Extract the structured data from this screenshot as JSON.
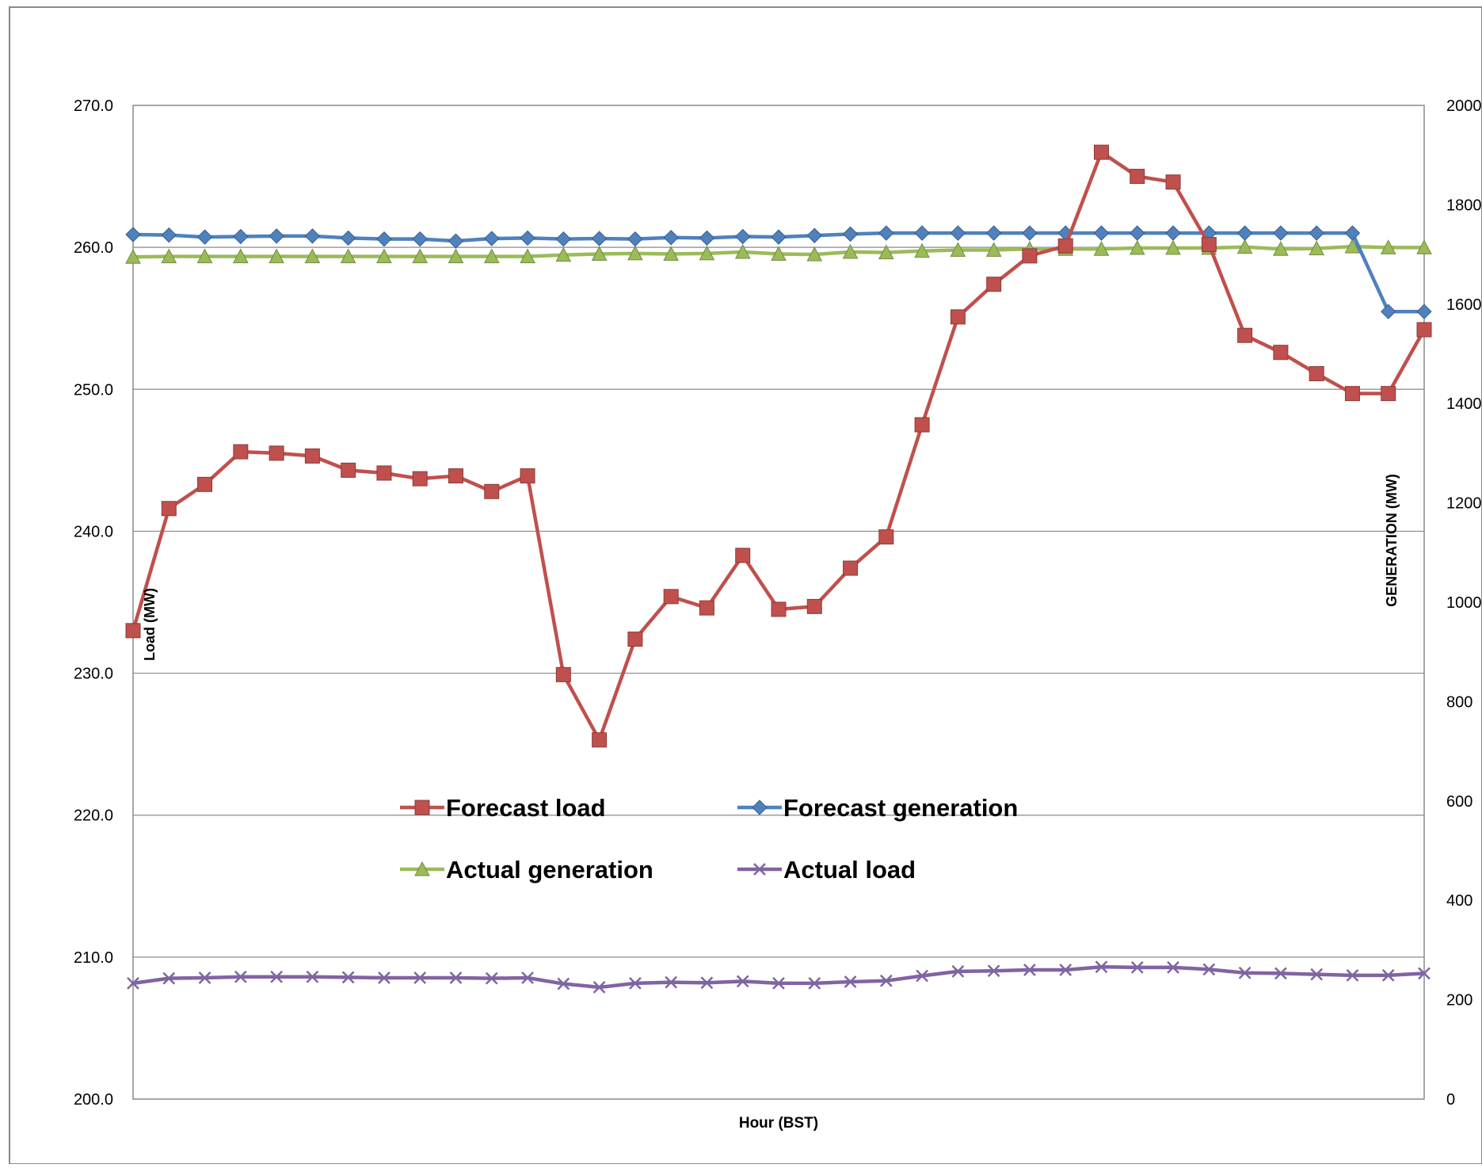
{
  "chart_data": {
    "type": "line",
    "title": "",
    "xlabel": "Hour (BST)",
    "ylabel_left": "Load (MW)",
    "ylabel_right": "GENERATION (MW)",
    "y_left": {
      "lim": [
        200,
        270
      ],
      "ticks": [
        200,
        210,
        220,
        230,
        240,
        250,
        260,
        270
      ],
      "tick_labels": [
        "200.0",
        "210.0",
        "220.0",
        "230.0",
        "240.0",
        "250.0",
        "260.0",
        "270.0"
      ]
    },
    "y_right": {
      "lim": [
        0,
        2000
      ],
      "ticks": [
        0,
        200,
        400,
        600,
        800,
        1000,
        1200,
        1400,
        1600,
        1800,
        2000
      ],
      "tick_labels": [
        "0",
        "200",
        "400",
        "600",
        "800",
        "1000",
        "1200",
        "1400",
        "1600",
        "1800",
        "2000"
      ]
    },
    "x_points": 37,
    "grid": "horizontal",
    "legend_position": "center-bottom",
    "series": [
      {
        "name": "Forecast load",
        "axis": "left",
        "color": "#C0504D",
        "marker": "square",
        "values": [
          233.0,
          241.6,
          243.3,
          245.6,
          245.5,
          245.3,
          244.3,
          244.1,
          243.7,
          243.9,
          242.8,
          243.9,
          229.9,
          225.3,
          232.4,
          235.4,
          234.6,
          238.3,
          234.5,
          234.7,
          237.4,
          239.6,
          247.5,
          255.1,
          257.4,
          259.4,
          260.1,
          266.7,
          265.0,
          264.6,
          260.2,
          253.8,
          252.6,
          251.1,
          249.7,
          249.7,
          254.2
        ]
      },
      {
        "name": "Forecast generation",
        "axis": "right",
        "color": "#4F81BD",
        "marker": "diamond",
        "values": [
          1740,
          1739,
          1735,
          1736,
          1737,
          1737,
          1733,
          1731,
          1731,
          1727,
          1732,
          1733,
          1731,
          1732,
          1731,
          1734,
          1733,
          1736,
          1735,
          1738,
          1741,
          1743,
          1743,
          1743,
          1743,
          1743,
          1743,
          1743,
          1743,
          1743,
          1743,
          1743,
          1743,
          1743,
          1743,
          1585,
          1585
        ]
      },
      {
        "name": "Actual generation",
        "axis": "right",
        "color": "#9BBB59",
        "marker": "triangle",
        "values": [
          1695,
          1696,
          1696,
          1696,
          1696,
          1696,
          1696,
          1696,
          1696,
          1696,
          1696,
          1696,
          1699,
          1701,
          1702,
          1701,
          1702,
          1705,
          1701,
          1700,
          1705,
          1704,
          1707,
          1709,
          1709,
          1711,
          1711,
          1711,
          1713,
          1713,
          1713,
          1715,
          1711,
          1712,
          1716,
          1714,
          1714
        ]
      },
      {
        "name": "Actual load",
        "axis": "right",
        "color": "#8064A2",
        "marker": "x",
        "values": [
          233,
          243,
          244,
          246,
          246,
          246,
          245,
          244,
          244,
          244,
          243,
          244,
          232,
          225,
          233,
          235,
          234,
          237,
          233,
          233,
          236,
          238,
          248,
          257,
          258,
          260,
          260,
          266,
          265,
          265,
          261,
          254,
          253,
          251,
          249,
          249,
          253
        ]
      }
    ]
  }
}
